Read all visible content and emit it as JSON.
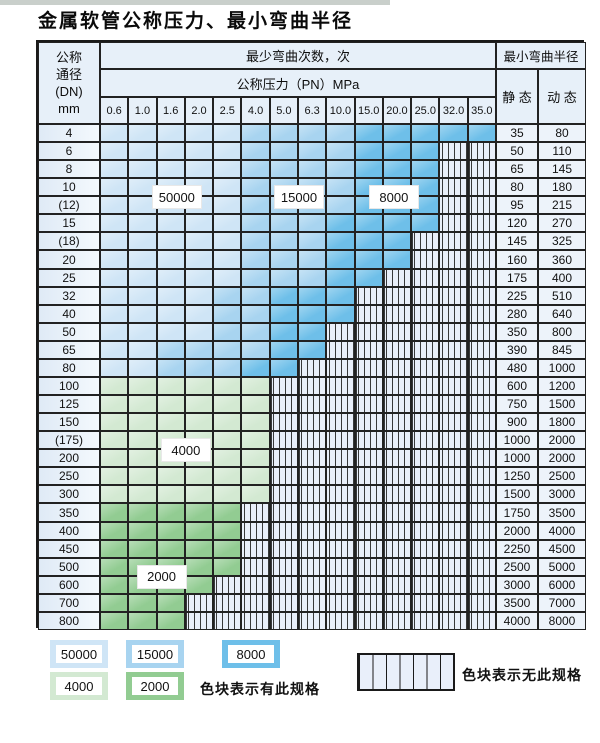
{
  "title": "金属软管公称压力、最小弯曲半径",
  "colors": {
    "L": "#cfe5f6",
    "M": "#a8d4f0",
    "D": "#6ebfe9",
    "G": "#d3e9d2",
    "g": "#92cc92",
    "empty": "#e9effa",
    "grid": "#222222",
    "header_bg": "#e7f0f9",
    "value_bg": "#edf3fa",
    "top_strip": "#c9cfcb"
  },
  "table": {
    "header": {
      "dn_lines": [
        "公称",
        "通径",
        "(DN)",
        "mm"
      ],
      "cycles_header": "最少弯曲次数，次",
      "pressure_header": "公称压力（PN）MPa",
      "pressures": [
        "0.6",
        "1.0",
        "1.6",
        "2.0",
        "2.5",
        "4.0",
        "5.0",
        "6.3",
        "10.0",
        "15.0",
        "20.0",
        "25.0",
        "32.0",
        "35.0"
      ],
      "radius_header": "最小弯曲半径",
      "static_label": "静 态",
      "dynamic_label": "动 态"
    },
    "rows": [
      {
        "dn": "4",
        "cells": "LLLLLMMMMDDDDD",
        "static": "35",
        "dynamic": "80"
      },
      {
        "dn": "6",
        "cells": "LLLLLMMMMDDDHH",
        "static": "50",
        "dynamic": "110"
      },
      {
        "dn": "8",
        "cells": "LLLLLMMMMDDDHH",
        "static": "65",
        "dynamic": "145"
      },
      {
        "dn": "10",
        "cells": "LLLLLMMMMDDDHH",
        "static": "80",
        "dynamic": "180"
      },
      {
        "dn": "(12)",
        "cells": "LLLLLMMMMDDDHH",
        "static": "95",
        "dynamic": "215"
      },
      {
        "dn": "15",
        "cells": "LLLLLMMMDDDDHH",
        "static": "120",
        "dynamic": "270"
      },
      {
        "dn": "(18)",
        "cells": "LLLLLMMMDDDHHH",
        "static": "145",
        "dynamic": "325"
      },
      {
        "dn": "20",
        "cells": "LLLLLMMMDDDHHH",
        "static": "160",
        "dynamic": "360"
      },
      {
        "dn": "25",
        "cells": "LLLLLMMMDDHHHH",
        "static": "175",
        "dynamic": "400"
      },
      {
        "dn": "32",
        "cells": "LLLLMMDDDHHHHH",
        "static": "225",
        "dynamic": "510"
      },
      {
        "dn": "40",
        "cells": "LLLLMMDDDHHHHH",
        "static": "280",
        "dynamic": "640"
      },
      {
        "dn": "50",
        "cells": "LLLLMMDDHHHHHH",
        "static": "350",
        "dynamic": "800"
      },
      {
        "dn": "65",
        "cells": "LLMMMMDDHHHHHH",
        "static": "390",
        "dynamic": "845"
      },
      {
        "dn": "80",
        "cells": "LLMMMDDHHHHHHH",
        "static": "480",
        "dynamic": "1000"
      },
      {
        "dn": "100",
        "cells": "GGGGGGHHHHHHHH",
        "static": "600",
        "dynamic": "1200"
      },
      {
        "dn": "125",
        "cells": "GGGGGGHHHHHHHH",
        "static": "750",
        "dynamic": "1500"
      },
      {
        "dn": "150",
        "cells": "GGGGGGHHHHHHHH",
        "static": "900",
        "dynamic": "1800"
      },
      {
        "dn": "(175)",
        "cells": "GGGGGGHHHHHHHH",
        "static": "1000",
        "dynamic": "2000"
      },
      {
        "dn": "200",
        "cells": "GGGGGGHHHHHHHH",
        "static": "1000",
        "dynamic": "2000"
      },
      {
        "dn": "250",
        "cells": "GGGGGGHHHHHHHH",
        "static": "1250",
        "dynamic": "2500"
      },
      {
        "dn": "300",
        "cells": "GGGGGGHHHHHHHH",
        "static": "1500",
        "dynamic": "3000"
      },
      {
        "dn": "350",
        "cells": "gggggHHHHHHHHH",
        "static": "1750",
        "dynamic": "3500"
      },
      {
        "dn": "400",
        "cells": "gggggHHHHHHHHH",
        "static": "2000",
        "dynamic": "4000"
      },
      {
        "dn": "450",
        "cells": "gggggHHHHHHHHH",
        "static": "2250",
        "dynamic": "4500"
      },
      {
        "dn": "500",
        "cells": "gggggHHHHHHHHH",
        "static": "2500",
        "dynamic": "5000"
      },
      {
        "dn": "600",
        "cells": "ggggHHHHHHHHHH",
        "static": "3000",
        "dynamic": "6000"
      },
      {
        "dn": "700",
        "cells": "gggHHHHHHHHHHH",
        "static": "3500",
        "dynamic": "7000"
      },
      {
        "dn": "800",
        "cells": "gggHHHHHHHHHHH",
        "static": "4000",
        "dynamic": "8000"
      }
    ]
  },
  "zone_labels": [
    {
      "text": "50000",
      "row_index": 3,
      "col_start": 2,
      "col_end": 3
    },
    {
      "text": "15000",
      "row_index": 3,
      "col_start": 6,
      "col_end": 7
    },
    {
      "text": "8000",
      "row_index": 3,
      "col_start": 9,
      "col_end": 10
    },
    {
      "text": "4000",
      "row_index": 17,
      "col_start": 2,
      "col_end": 3
    },
    {
      "text": "2000",
      "row_index": 24,
      "col_start": 1,
      "col_end": 2
    }
  ],
  "legend": {
    "has_spec_items": [
      {
        "value": "50000",
        "key": "L"
      },
      {
        "value": "15000",
        "key": "M"
      },
      {
        "value": "8000",
        "key": "D"
      },
      {
        "value": "4000",
        "key": "G"
      },
      {
        "value": "2000",
        "key": "g"
      }
    ],
    "has_spec_text": "色块表示有此规格",
    "no_spec_text": "色块表示无此规格"
  }
}
